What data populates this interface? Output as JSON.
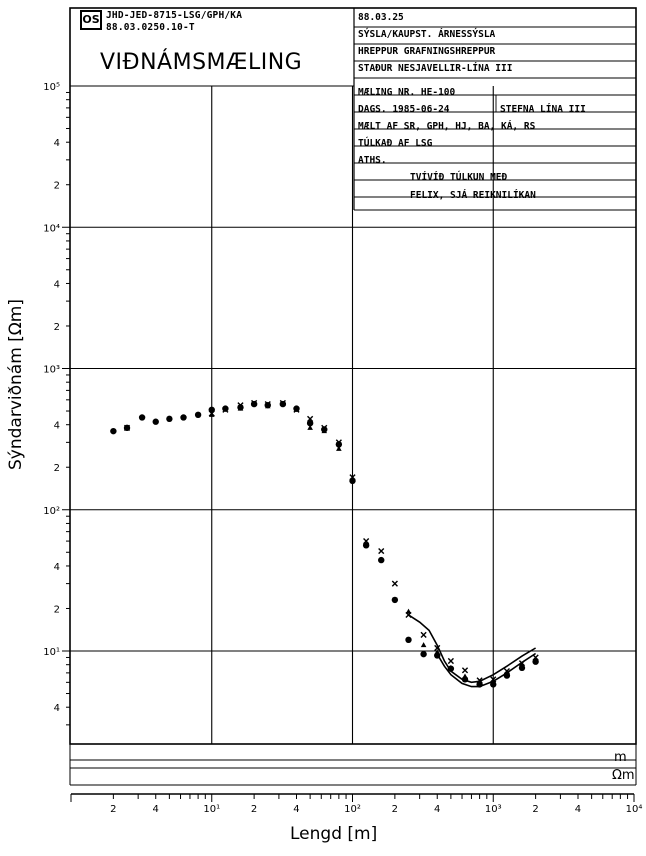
{
  "stamp": {
    "logo": "OS",
    "line1": "JHD-JED-8715-LSG/GPH/KA",
    "line2": "88.03.0250.10-T"
  },
  "title": "VIÐNÁMSMÆLING",
  "info_rows": [
    "88.03.25",
    "SÝSLA/KAUPST.  ÁRNESSÝSLA",
    "HREPPUR   GRAFNINGSHREPPUR",
    "STAÐUR   NESJAVELLIR-LÍNA III",
    "MÆLING NR.  HE-100",
    "DAGS.  1985-06-24",
    "STEFNA LÍNA III",
    "MÆLT AF   SR, GPH, HJ, BA, KÁ, RS",
    "TÚLKAÐ AF  LSG",
    "ATHS.",
    "TVÍVÍÐ TÚLKUN MEÐ",
    "FELIX,  SJÁ REIKNILÍKAN"
  ],
  "units": {
    "m": "m",
    "ohm_m": "Ωm"
  },
  "chart_data": {
    "type": "scatter",
    "title": "",
    "xlabel": "Lengd [m]",
    "ylabel": "Sýndarviðnám [Ωm]",
    "xscale": "log",
    "yscale": "log",
    "xlim": [
      1,
      10000
    ],
    "ylim": [
      3,
      100000
    ],
    "grid": "decades",
    "x_tick_labels": [
      "2",
      "4",
      "10¹",
      "2",
      "4",
      "10²",
      "2",
      "4",
      "10³",
      "2",
      "4",
      "10⁴"
    ],
    "y_tick_labels": [
      "4",
      "10¹",
      "2",
      "4",
      "10²",
      "2",
      "4",
      "10³",
      "2",
      "4",
      "10⁴",
      "2",
      "4",
      "10⁵"
    ],
    "series": [
      {
        "marker": "dot",
        "x": [
          2,
          2.5,
          3.2,
          4,
          5,
          6.3,
          8,
          10,
          12.5,
          16,
          20,
          25,
          32,
          40,
          50,
          63,
          80,
          100,
          125,
          160,
          200,
          250,
          320,
          400,
          500,
          630,
          800,
          1000,
          1250,
          1600,
          2000
        ],
        "y": [
          360,
          380,
          450,
          420,
          440,
          450,
          470,
          510,
          520,
          530,
          560,
          550,
          560,
          520,
          410,
          370,
          290,
          160,
          56,
          44,
          23,
          12,
          9.5,
          9.3,
          7.5,
          6.3,
          5.8,
          5.8,
          6.7,
          7.6,
          8.4
        ]
      },
      {
        "marker": "x",
        "x": [
          2.5,
          10,
          12.5,
          16,
          20,
          25,
          32,
          40,
          50,
          63,
          80,
          100,
          125,
          160,
          200,
          250,
          320,
          400,
          500,
          630,
          800,
          1000,
          1250,
          1600,
          2000
        ],
        "y": [
          380,
          480,
          510,
          550,
          570,
          560,
          570,
          510,
          440,
          380,
          300,
          170,
          60,
          51,
          30,
          18,
          13,
          10.5,
          8.5,
          7.3,
          6.2,
          6.3,
          7.2,
          8.2,
          9.0
        ]
      },
      {
        "marker": "triangle",
        "x": [
          10,
          16,
          25,
          40,
          50,
          63,
          80,
          250,
          320,
          400,
          500,
          630,
          800,
          1000,
          1250,
          1600
        ],
        "y": [
          470,
          520,
          540,
          510,
          380,
          360,
          270,
          19,
          11,
          9.8,
          7.6,
          6.6,
          6.0,
          6.1,
          7.0,
          7.9
        ]
      }
    ],
    "model_curves": [
      {
        "x": [
          250,
          300,
          350,
          400,
          450,
          500,
          600,
          700,
          800,
          1000,
          1250,
          1600,
          2000
        ],
        "y": [
          18,
          16,
          14,
          11,
          8.5,
          7.2,
          6.3,
          6.0,
          6.1,
          6.8,
          7.8,
          9.2,
          10.5
        ]
      },
      {
        "x": [
          400,
          450,
          500,
          600,
          700,
          800,
          1000,
          1250,
          1600,
          2000
        ],
        "y": [
          9.5,
          7.8,
          6.8,
          5.9,
          5.6,
          5.6,
          6.1,
          7.0,
          8.3,
          9.6
        ]
      }
    ]
  }
}
